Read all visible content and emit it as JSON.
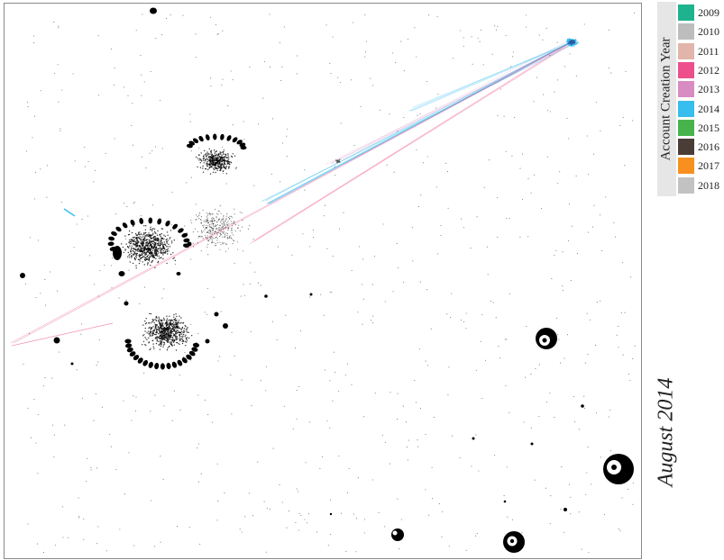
{
  "legend": {
    "title": "Account Creation Year",
    "items": [
      {
        "year": "2009",
        "color": "#1fb28f"
      },
      {
        "year": "2010",
        "color": "#bdbdbd"
      },
      {
        "year": "2011",
        "color": "#e2b5ab"
      },
      {
        "year": "2012",
        "color": "#ec4f8c"
      },
      {
        "year": "2013",
        "color": "#d88cc2"
      },
      {
        "year": "2014",
        "color": "#38bdef"
      },
      {
        "year": "2015",
        "color": "#47b44b"
      },
      {
        "year": "2016",
        "color": "#4a3c36"
      },
      {
        "year": "2017",
        "color": "#f7901e"
      },
      {
        "year": "2018",
        "color": "#c2c2c2"
      }
    ]
  },
  "period_label": "August 2014",
  "colors": {
    "node": "#000000",
    "frame": "#8a8a8a",
    "legend_band": "#e6e6e6"
  }
}
